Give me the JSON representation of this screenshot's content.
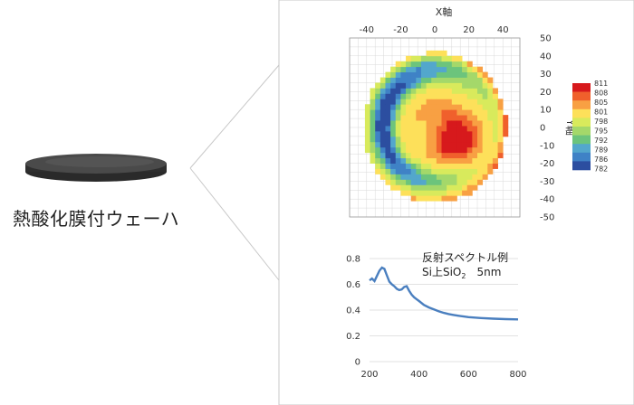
{
  "wafer": {
    "label": "熱酸化膜付ウェーハ"
  },
  "colors": {
    "wafer_top": "#4a4a4a",
    "wafer_edge": "#2a2a2a",
    "panel_border": "#c8c8c8",
    "spectrum_line": "#4a7fbf",
    "grid": "#d9d9d9"
  },
  "chart_data": [
    {
      "type": "heatmap",
      "title": "",
      "xlabel": "X軸",
      "ylabel": "Y軸",
      "xlim": [
        -50,
        50
      ],
      "ylim": [
        -50,
        50
      ],
      "x_ticks": [
        "-40",
        "-20",
        "0",
        "20",
        "40"
      ],
      "y_ticks": [
        "50",
        "40",
        "30",
        "20",
        "10",
        "0",
        "-10",
        "-20",
        "-30",
        "-40",
        "-50"
      ],
      "grid": true,
      "wafer_radius": 42,
      "value_range": [
        782,
        811
      ],
      "legend": {
        "placement": "right",
        "levels": [
          "811",
          "808",
          "805",
          "801",
          "798",
          "795",
          "792",
          "789",
          "786",
          "782"
        ],
        "colors": [
          "#d7191c",
          "#f0602c",
          "#f8a043",
          "#fde05a",
          "#d8ea5c",
          "#a4d86a",
          "#6cc47c",
          "#53a7cc",
          "#3f82c6",
          "#2c4ea0"
        ]
      }
    },
    {
      "type": "line",
      "title": "",
      "xlabel": "",
      "ylabel": "",
      "xlim": [
        200,
        800
      ],
      "ylim": [
        0,
        0.8
      ],
      "x_ticks": [
        "200",
        "400",
        "600",
        "800"
      ],
      "y_ticks": [
        "0.8",
        "0.6",
        "0.4",
        "0.2",
        "0"
      ],
      "annotation": {
        "line1": "反射スペクトル例",
        "line2_prefix": "Si上SiO",
        "line2_sub": "2",
        "line2_suffix": "5nm"
      },
      "series": [
        {
          "x": [
            200,
            210,
            220,
            230,
            240,
            250,
            260,
            270,
            280,
            290,
            300,
            310,
            320,
            330,
            340,
            350,
            360,
            370,
            380,
            390,
            400,
            420,
            440,
            460,
            480,
            500,
            520,
            540,
            560,
            580,
            600,
            650,
            700,
            750,
            800
          ],
          "values": [
            0.63,
            0.645,
            0.625,
            0.665,
            0.705,
            0.73,
            0.72,
            0.67,
            0.62,
            0.6,
            0.585,
            0.565,
            0.555,
            0.56,
            0.58,
            0.585,
            0.55,
            0.52,
            0.5,
            0.485,
            0.47,
            0.44,
            0.42,
            0.405,
            0.39,
            0.378,
            0.369,
            0.362,
            0.356,
            0.35,
            0.345,
            0.338,
            0.333,
            0.33,
            0.328
          ]
        }
      ]
    }
  ]
}
